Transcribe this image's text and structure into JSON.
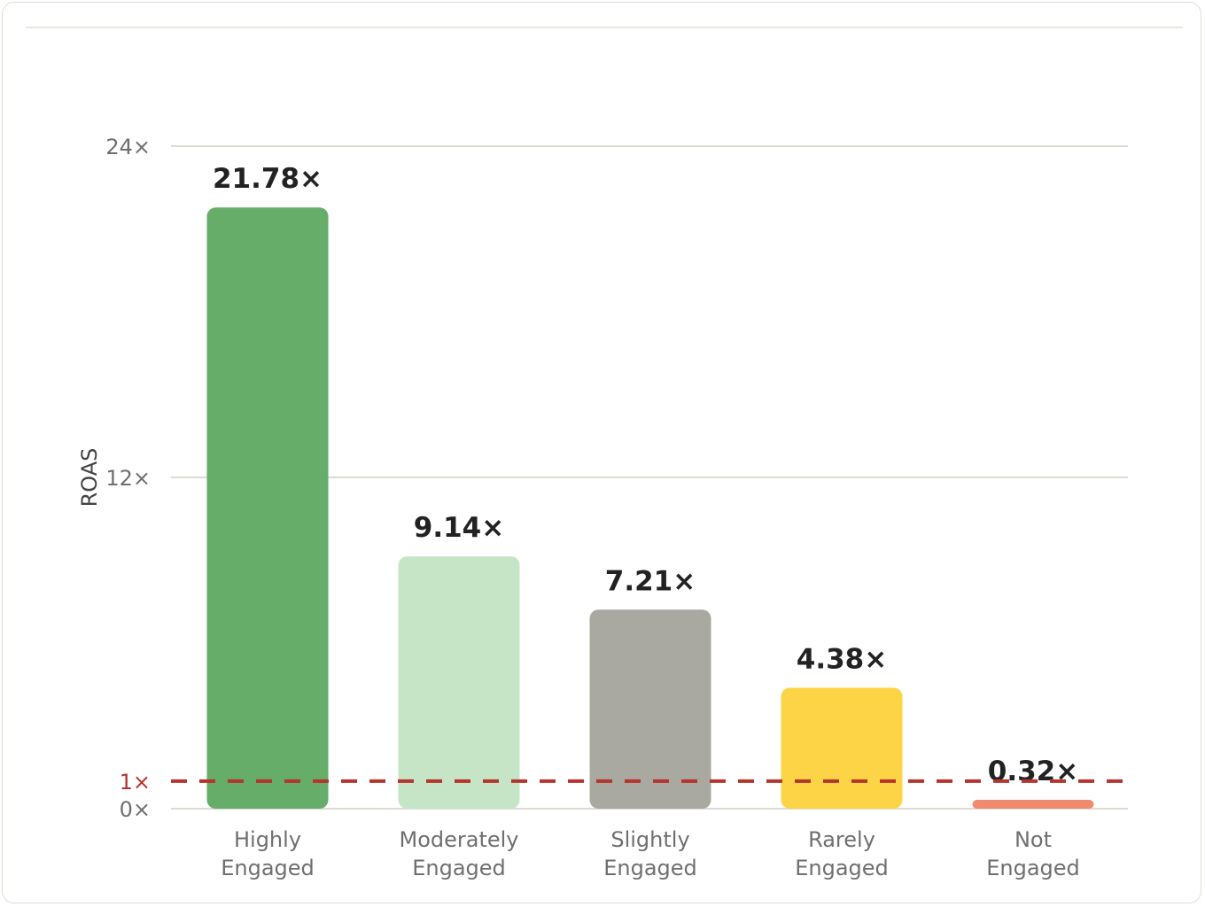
{
  "chart_data": {
    "type": "bar",
    "ylabel": "ROAS",
    "ylim": [
      0,
      24
    ],
    "y_ticks": [
      {
        "value": 0,
        "label": "0×"
      },
      {
        "value": 12,
        "label": "12×"
      },
      {
        "value": 24,
        "label": "24×"
      }
    ],
    "reference_line": {
      "value": 1,
      "label": "1×",
      "color": "#b5342b",
      "style": "dashed"
    },
    "categories": [
      [
        "Highly",
        "Engaged"
      ],
      [
        "Moderately",
        "Engaged"
      ],
      [
        "Slightly",
        "Engaged"
      ],
      [
        "Rarely",
        "Engaged"
      ],
      [
        "Not",
        "Engaged"
      ]
    ],
    "values": [
      21.78,
      9.14,
      7.21,
      4.38,
      0.32
    ],
    "value_labels": [
      "21.78×",
      "9.14×",
      "7.21×",
      "4.38×",
      "0.32×"
    ],
    "colors": [
      "#66ad6a",
      "#c6e5c7",
      "#a9a9a2",
      "#fdd446",
      "#f08a6e"
    ],
    "grid": true,
    "colors_meta": {
      "grid": "#dedbd3",
      "axis_text": "#6f6f6f",
      "value_text": "#222222"
    }
  }
}
